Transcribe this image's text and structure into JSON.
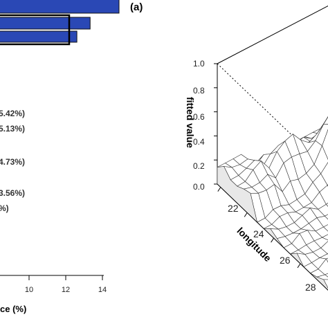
{
  "panel_label": "(a)",
  "chart_data": [
    {
      "type": "bar",
      "orientation": "horizontal",
      "bar_color": "#2a48b5",
      "bars": [
        {
          "values_fraction_of_max": 1.0
        },
        {
          "values_fraction_of_max": 0.76
        },
        {
          "values_fraction_of_max": 0.65
        }
      ],
      "value_labels": [
        "5.42%)",
        "5.13%)",
        "4.73%)",
        "3.56%)",
        "%)"
      ],
      "xlabel_visible": "ce (%)",
      "x_ticks": [
        "10",
        "12",
        "14"
      ],
      "x_tick_values": [
        10,
        12,
        14
      ]
    },
    {
      "type": "surface3d",
      "zlabel": "fitted value",
      "z_ticks": [
        "1.0",
        "0.8",
        "0.6",
        "0.4",
        "0.2",
        "0.0"
      ],
      "z_tick_values": [
        1.0,
        0.8,
        0.6,
        0.4,
        0.2,
        0.0
      ],
      "x_label": "longitude",
      "x_ticks": [
        "22",
        "24",
        "26",
        "28"
      ],
      "x_tick_values": [
        22,
        24,
        26,
        28
      ],
      "zlim": [
        0,
        1
      ],
      "mesh_color": "#333333",
      "surface_fill": "#ffffff"
    }
  ]
}
